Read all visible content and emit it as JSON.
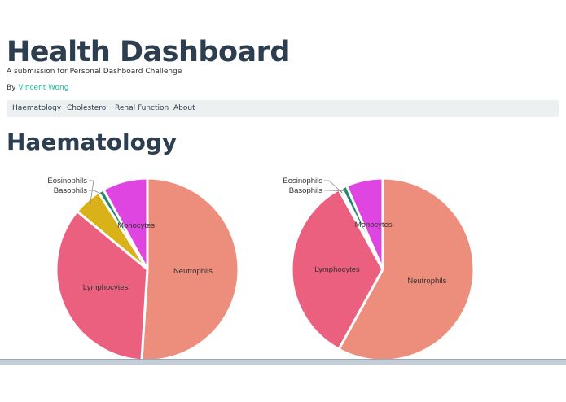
{
  "header": {
    "title": "Health Dashboard",
    "subtitle": "A submission for Personal Dashboard Challenge",
    "by_prefix": "By ",
    "author": "Vincent Wong"
  },
  "nav": {
    "items": [
      {
        "label": "Haematology"
      },
      {
        "label": "Cholesterol"
      },
      {
        "label": "Renal Function"
      },
      {
        "label": "About"
      }
    ]
  },
  "section": {
    "title": "Haematology"
  },
  "colors": {
    "Neutrophils": "#ec8e7b",
    "Lymphocytes": "#ec607f",
    "Eosinophils": "#d9b21a",
    "Basophils": "#1d8a6e",
    "Monocytes": "#df45e0"
  },
  "chart_data": [
    {
      "type": "pie",
      "slices": [
        {
          "label": "Neutrophils",
          "value": 51
        },
        {
          "label": "Lymphocytes",
          "value": 35
        },
        {
          "label": "Eosinophils",
          "value": 5
        },
        {
          "label": "Basophils",
          "value": 1
        },
        {
          "label": "Monocytes",
          "value": 8
        }
      ]
    },
    {
      "type": "pie",
      "slices": [
        {
          "label": "Neutrophils",
          "value": 58
        },
        {
          "label": "Lymphocytes",
          "value": 34
        },
        {
          "label": "Eosinophils",
          "value": 0.5
        },
        {
          "label": "Basophils",
          "value": 1
        },
        {
          "label": "Monocytes",
          "value": 6.5
        }
      ]
    }
  ]
}
